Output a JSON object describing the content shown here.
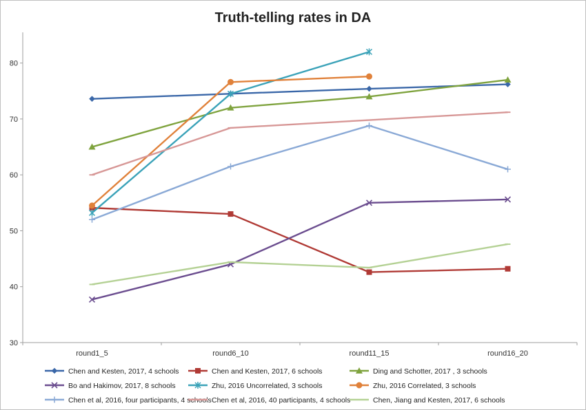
{
  "chart_data": {
    "type": "line",
    "title": "Truth-telling rates in DA",
    "xlabel": "",
    "ylabel": "",
    "categories": [
      "round1_5",
      "round6_10",
      "round11_15",
      "round16_20"
    ],
    "ylim": [
      30,
      85
    ],
    "yticks": [
      30,
      40,
      50,
      60,
      70,
      80
    ],
    "grid": false,
    "legend_position": "bottom",
    "series": [
      {
        "name": "Chen and Kesten, 2017, 4 schools",
        "values": [
          73.6,
          74.5,
          75.4,
          76.2
        ],
        "color": "#3A67A8",
        "marker": "diamond"
      },
      {
        "name": "Chen and Kesten, 2017, 6 schools",
        "values": [
          54.1,
          53.0,
          42.6,
          43.2
        ],
        "color": "#B03A35",
        "marker": "square"
      },
      {
        "name": "Ding and Schotter, 2017 , 3 schools",
        "values": [
          65.0,
          72.0,
          74.0,
          77.0
        ],
        "color": "#7FA33E",
        "marker": "triangle"
      },
      {
        "name": "Bo and Hakimov, 2017, 8 schools",
        "values": [
          37.7,
          44.0,
          55.0,
          55.6
        ],
        "color": "#6B4D8F",
        "marker": "x"
      },
      {
        "name": "Zhu, 2016 Uncorrelated, 3 schools",
        "values": [
          53.2,
          74.5,
          82.0,
          null
        ],
        "color": "#3AA2B8",
        "marker": "asterisk"
      },
      {
        "name": "Zhu, 2016 Correlated, 3 schools",
        "values": [
          54.5,
          76.6,
          77.6,
          null
        ],
        "color": "#E0813A",
        "marker": "circle"
      },
      {
        "name": "Chen et al, 2016, four participants, 4 schools",
        "values": [
          52.0,
          61.5,
          68.8,
          61.0
        ],
        "color": "#8AA9D6",
        "marker": "plus"
      },
      {
        "name": "Chen et al, 2016, 40 participants, 4 schools",
        "values": [
          60.0,
          68.4,
          69.8,
          71.2
        ],
        "color": "#D79796",
        "marker": "dash"
      },
      {
        "name": "Chen, Jiang and Kesten, 2017, 6 schools",
        "values": [
          40.4,
          44.4,
          43.4,
          47.6
        ],
        "color": "#B4D194",
        "marker": "dash"
      }
    ]
  }
}
